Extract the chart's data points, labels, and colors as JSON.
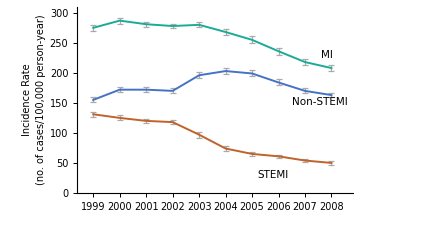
{
  "years": [
    1999,
    2000,
    2001,
    2002,
    2003,
    2004,
    2005,
    2006,
    2007,
    2008
  ],
  "MI": [
    275,
    287,
    281,
    278,
    280,
    268,
    255,
    236,
    218,
    208
  ],
  "MI_err": [
    5,
    5,
    4,
    4,
    4,
    5,
    6,
    6,
    5,
    5
  ],
  "NonSTEMI": [
    155,
    172,
    172,
    170,
    196,
    203,
    199,
    184,
    170,
    163
  ],
  "NonSTEMI_err": [
    4,
    4,
    4,
    4,
    5,
    5,
    5,
    5,
    4,
    4
  ],
  "STEMI": [
    131,
    125,
    120,
    118,
    97,
    74,
    65,
    61,
    54,
    50
  ],
  "STEMI_err": [
    4,
    4,
    3,
    4,
    5,
    4,
    3,
    3,
    3,
    3
  ],
  "MI_color": "#1aab96",
  "NonSTEMI_color": "#4472c4",
  "STEMI_color": "#c0622a",
  "err_color": "#aaaaaa",
  "ylabel_line1": "Incidence Rate",
  "ylabel_line2": "(no. of cases/100,000 person-year)",
  "ylim": [
    0,
    310
  ],
  "yticks": [
    0,
    50,
    100,
    150,
    200,
    250,
    300
  ],
  "xlim": [
    1998.4,
    2008.8
  ],
  "MI_label": "MI",
  "NonSTEMI_label": "Non-STEMI",
  "STEMI_label": "STEMI",
  "label_fontsize": 7.5,
  "tick_fontsize": 7,
  "ylabel_fontsize": 7
}
